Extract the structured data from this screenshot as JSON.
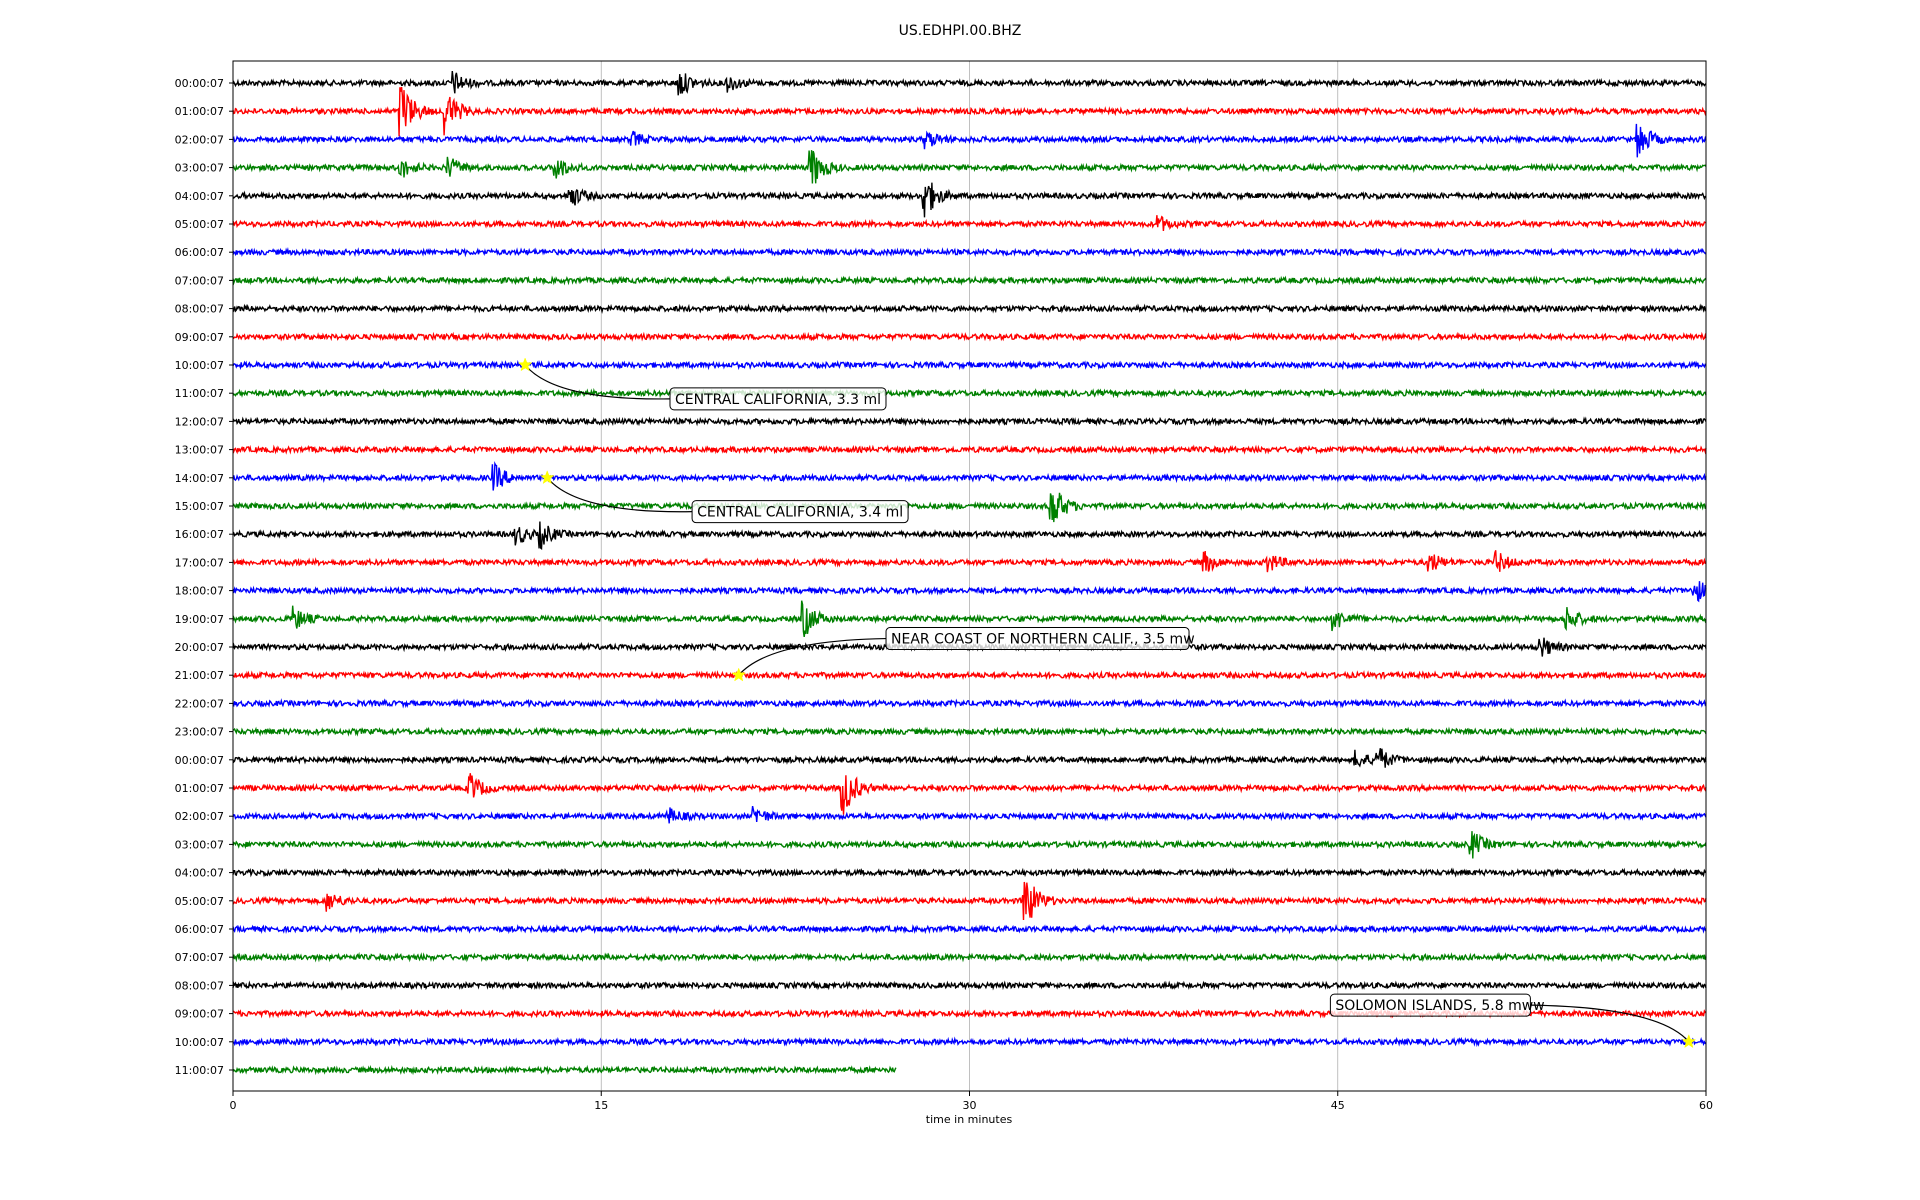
{
  "chart_data": {
    "type": "line",
    "title": "US.EDHPI.00.BHZ",
    "xlabel": "time in minutes",
    "xlim": [
      0,
      60
    ],
    "x_ticks": [
      0,
      15,
      30,
      45,
      60
    ],
    "x_tick_labels": [
      "0",
      "15",
      "30",
      "45",
      "60"
    ],
    "vertical_grid": true,
    "color_cycle": [
      "#000000",
      "#ff0000",
      "#0000ff",
      "#008000"
    ],
    "row_labels": [
      "00:00:07",
      "01:00:07",
      "02:00:07",
      "03:00:07",
      "04:00:07",
      "05:00:07",
      "06:00:07",
      "07:00:07",
      "08:00:07",
      "09:00:07",
      "10:00:07",
      "11:00:07",
      "12:00:07",
      "13:00:07",
      "14:00:07",
      "15:00:07",
      "16:00:07",
      "17:00:07",
      "18:00:07",
      "19:00:07",
      "20:00:07",
      "21:00:07",
      "22:00:07",
      "23:00:07",
      "00:00:07",
      "01:00:07",
      "02:00:07",
      "03:00:07",
      "04:00:07",
      "05:00:07",
      "06:00:07",
      "07:00:07",
      "08:00:07",
      "09:00:07",
      "10:00:07",
      "11:00:07"
    ],
    "last_row_end_minute": 27,
    "bursts": [
      {
        "row": 0,
        "minute": 9,
        "amp": 0.5
      },
      {
        "row": 0,
        "minute": 18.2,
        "amp": 0.6
      },
      {
        "row": 0,
        "minute": 20.2,
        "amp": 0.35
      },
      {
        "row": 1,
        "minute": 6.9,
        "amp": 1.3
      },
      {
        "row": 1,
        "minute": 8.7,
        "amp": 1.0
      },
      {
        "row": 2,
        "minute": 16.3,
        "amp": 0.3
      },
      {
        "row": 2,
        "minute": 28.3,
        "amp": 0.35
      },
      {
        "row": 2,
        "minute": 57.3,
        "amp": 0.8
      },
      {
        "row": 3,
        "minute": 6.9,
        "amp": 0.4
      },
      {
        "row": 3,
        "minute": 8.8,
        "amp": 0.45
      },
      {
        "row": 3,
        "minute": 13.2,
        "amp": 0.5
      },
      {
        "row": 3,
        "minute": 23.6,
        "amp": 0.9
      },
      {
        "row": 4,
        "minute": 13.8,
        "amp": 0.45
      },
      {
        "row": 4,
        "minute": 28.2,
        "amp": 1.0
      },
      {
        "row": 5,
        "minute": 37.7,
        "amp": 0.35
      },
      {
        "row": 14,
        "minute": 10.7,
        "amp": 0.55
      },
      {
        "row": 15,
        "minute": 33.4,
        "amp": 1.0
      },
      {
        "row": 16,
        "minute": 11.6,
        "amp": 0.4
      },
      {
        "row": 16,
        "minute": 12.6,
        "amp": 0.5
      },
      {
        "row": 17,
        "minute": 39.6,
        "amp": 0.45
      },
      {
        "row": 17,
        "minute": 42.2,
        "amp": 0.4
      },
      {
        "row": 17,
        "minute": 48.8,
        "amp": 0.4
      },
      {
        "row": 17,
        "minute": 51.5,
        "amp": 0.45
      },
      {
        "row": 18,
        "minute": 59.6,
        "amp": 0.5
      },
      {
        "row": 19,
        "minute": 2.5,
        "amp": 0.5
      },
      {
        "row": 19,
        "minute": 23.3,
        "amp": 0.75
      },
      {
        "row": 19,
        "minute": 44.9,
        "amp": 0.45
      },
      {
        "row": 19,
        "minute": 54.4,
        "amp": 0.5
      },
      {
        "row": 20,
        "minute": 53.3,
        "amp": 0.45
      },
      {
        "row": 24,
        "minute": 45.8,
        "amp": 0.35
      },
      {
        "row": 24,
        "minute": 46.7,
        "amp": 0.5
      },
      {
        "row": 25,
        "minute": 9.7,
        "amp": 0.6
      },
      {
        "row": 25,
        "minute": 24.9,
        "amp": 1.2
      },
      {
        "row": 26,
        "minute": 17.8,
        "amp": 0.3
      },
      {
        "row": 26,
        "minute": 21.3,
        "amp": 0.35
      },
      {
        "row": 27,
        "minute": 50.5,
        "amp": 0.55
      },
      {
        "row": 29,
        "minute": 3.9,
        "amp": 0.4
      },
      {
        "row": 29,
        "minute": 32.3,
        "amp": 1.3
      }
    ],
    "events": [
      {
        "label": "CENTRAL CALIFORNIA, 3.3 ml",
        "row": 10,
        "minute": 11.9,
        "label_minute": 17.8,
        "label_row": 11.2
      },
      {
        "label": "CENTRAL CALIFORNIA, 3.4 ml",
        "row": 14,
        "minute": 12.8,
        "label_minute": 18.7,
        "label_row": 15.2
      },
      {
        "label": "NEAR COAST OF NORTHERN CALIF., 3.5 mw",
        "row": 21,
        "minute": 20.6,
        "label_minute": 26.6,
        "label_row": 19.7
      },
      {
        "label": "SOLOMON ISLANDS, 5.8 mww",
        "row": 34,
        "minute": 59.3,
        "label_minute": 44.7,
        "label_row": 32.7
      }
    ]
  }
}
